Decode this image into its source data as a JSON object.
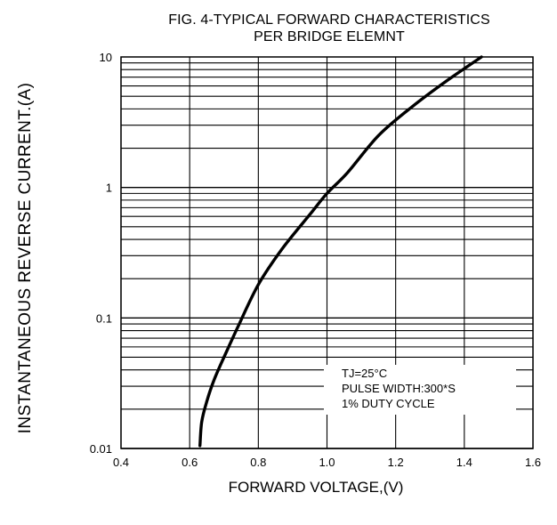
{
  "chart_data": {
    "type": "line",
    "title": "FIG. 4-TYPICAL FORWARD CHARACTERISTICS",
    "subtitle": "PER BRIDGE ELEMNT",
    "xlabel": "FORWARD VOLTAGE,(V)",
    "ylabel": "INSTANTANEOUS REVERSE CURRENT.(A)",
    "xlim": [
      0.4,
      1.6
    ],
    "ylim": [
      0.01,
      10
    ],
    "y_scale": "log",
    "x_ticks": [
      "0.4",
      "0.6",
      "0.8",
      "1.0",
      "1.2",
      "1.4",
      "1.6"
    ],
    "y_ticks": [
      "0.01",
      "0.1",
      "1",
      "10"
    ],
    "grid": true,
    "annotation": {
      "lines": [
        "TJ=25°C",
        "PULSE WIDTH:300*S",
        "1% DUTY CYCLE"
      ]
    },
    "series": [
      {
        "x": [
          0.63,
          0.635,
          0.65,
          0.67,
          0.7,
          0.74,
          0.8,
          0.87,
          0.95,
          1.0,
          1.06,
          1.15,
          1.25,
          1.35,
          1.45
        ],
        "y": [
          0.0105,
          0.016,
          0.023,
          0.033,
          0.05,
          0.085,
          0.18,
          0.34,
          0.62,
          0.9,
          1.3,
          2.5,
          4.2,
          6.6,
          10
        ]
      }
    ]
  }
}
